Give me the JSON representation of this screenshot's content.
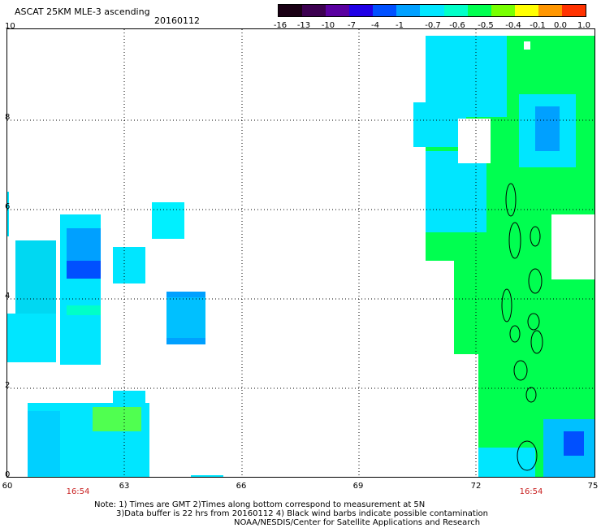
{
  "header": {
    "title": "ASCAT 25KM MLE-3 ascending",
    "date": "20160112"
  },
  "colorbar": {
    "labels": [
      "-16",
      "-13",
      "-10",
      "-7",
      "-4",
      "-1",
      "-0.7",
      "-0.6",
      "-0.5",
      "-0.4",
      "-0.1",
      "0.0",
      "1.0"
    ],
    "colors": [
      "#1a0014",
      "#3c0050",
      "#5a00a0",
      "#2000e6",
      "#0050ff",
      "#00a0ff",
      "#00e6ff",
      "#00ffc8",
      "#00ff50",
      "#78ff00",
      "#ffff00",
      "#ff9600",
      "#ff3200"
    ]
  },
  "axes": {
    "y_labels": [
      "10",
      "8",
      "6",
      "4",
      "2",
      "0"
    ],
    "x_labels": [
      "60",
      "63",
      "66",
      "69",
      "72",
      "75"
    ]
  },
  "times": [
    "16:54",
    "16:54"
  ],
  "notes": {
    "line1": "Note: 1) Times are GMT 2)Times along bottom correspond to measurement at 5N",
    "line2": "3)Data buffer is 22 hrs from 20160112 4) Black wind barbs indicate possible contamination",
    "line3": "NOAA/NESDIS/Center for Satellite Applications and Research"
  },
  "map": {
    "left_swath_color": "#00e6ff",
    "right_swath_color": "#00ff50",
    "strong_color": "#0050ff"
  }
}
